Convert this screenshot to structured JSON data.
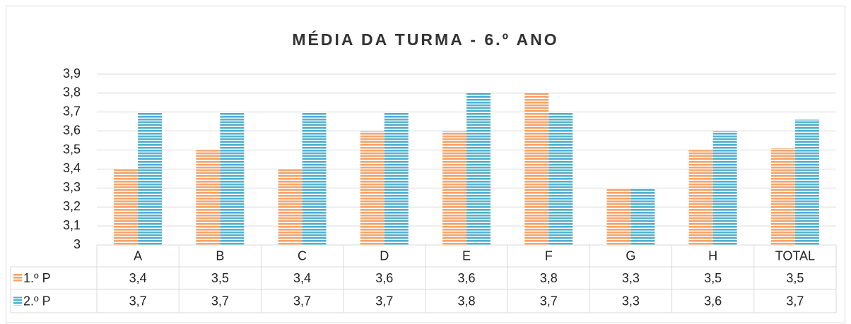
{
  "chart_data": {
    "type": "bar",
    "title": "MÉDIA DA TURMA - 6.º ANO",
    "categories": [
      "A",
      "B",
      "C",
      "D",
      "E",
      "F",
      "G",
      "H",
      "TOTAL"
    ],
    "series": [
      {
        "name": "1.º P",
        "color": "#f4a46a",
        "values": [
          3.4,
          3.5,
          3.4,
          3.6,
          3.6,
          3.8,
          3.3,
          3.5,
          3.51
        ],
        "value_labels": [
          "3,4",
          "3,5",
          "3,4",
          "3,6",
          "3,6",
          "3,8",
          "3,3",
          "3,5",
          "3,5"
        ]
      },
      {
        "name": "2.º P",
        "color": "#52b0cf",
        "values": [
          3.7,
          3.7,
          3.7,
          3.7,
          3.8,
          3.7,
          3.3,
          3.6,
          3.66
        ],
        "value_labels": [
          "3,7",
          "3,7",
          "3,7",
          "3,7",
          "3,8",
          "3,7",
          "3,3",
          "3,6",
          "3,7"
        ]
      }
    ],
    "ylim": [
      3,
      3.9
    ],
    "yticks": [
      3,
      {
        "value": 3.1,
        "label": "3,1"
      },
      {
        "value": 3.2,
        "label": "3,2"
      },
      {
        "value": 3.3,
        "label": "3,3"
      },
      {
        "value": 3.4,
        "label": "3,4"
      },
      {
        "value": 3.5,
        "label": "3,5"
      },
      {
        "value": 3.6,
        "label": "3,6"
      },
      {
        "value": 3.7,
        "label": "3,7"
      },
      {
        "value": 3.8,
        "label": "3,8"
      },
      {
        "value": 3.9,
        "label": "3,9"
      }
    ],
    "grid": true
  }
}
